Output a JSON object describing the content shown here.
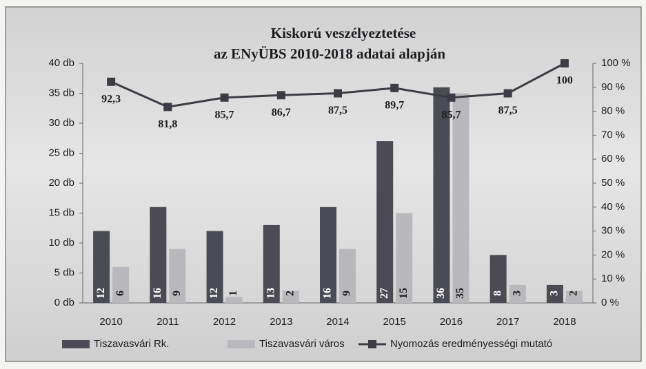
{
  "chart_data": {
    "type": "bar-line",
    "title": "Kiskorú veszélyeztetése",
    "subtitle": "az ENyÜBS 2010-2018 adatai alapján",
    "categories": [
      "2010",
      "2011",
      "2012",
      "2013",
      "2014",
      "2015",
      "2016",
      "2017",
      "2018"
    ],
    "series": [
      {
        "name": "Tiszavasvári Rk.",
        "type": "bar",
        "color": "#4b4b55",
        "values": [
          12,
          16,
          12,
          13,
          16,
          27,
          36,
          8,
          3
        ]
      },
      {
        "name": "Tiszavasvári város",
        "type": "bar",
        "color": "#b9b9bd",
        "values": [
          6,
          9,
          1,
          2,
          9,
          15,
          35,
          3,
          2
        ]
      },
      {
        "name": "Nyomozás eredményességi mutató",
        "type": "line",
        "axis": "y2",
        "color": "#3c3c44",
        "values": [
          92.3,
          81.8,
          85.7,
          86.7,
          87.5,
          89.7,
          85.7,
          87.5,
          100
        ],
        "value_labels": [
          "92,3",
          "81,8",
          "85,7",
          "86,7",
          "87,5",
          "89,7",
          "85,7",
          "87,5",
          "100"
        ]
      }
    ],
    "ylim": [
      0,
      40
    ],
    "yticks": [
      {
        "value": 0,
        "label": "0 db"
      },
      {
        "value": 5,
        "label": "5 db"
      },
      {
        "value": 10,
        "label": "10 db"
      },
      {
        "value": 15,
        "label": "15 db"
      },
      {
        "value": 20,
        "label": "20 db"
      },
      {
        "value": 25,
        "label": "25 db"
      },
      {
        "value": 30,
        "label": "30 db"
      },
      {
        "value": 35,
        "label": "35 db"
      },
      {
        "value": 40,
        "label": "40 db"
      }
    ],
    "y2lim": [
      0,
      100
    ],
    "y2ticks": [
      {
        "value": 0,
        "label": "0 %"
      },
      {
        "value": 10,
        "label": "10 %"
      },
      {
        "value": 20,
        "label": "20 %"
      },
      {
        "value": 30,
        "label": "30 %"
      },
      {
        "value": 40,
        "label": "40 %"
      },
      {
        "value": 50,
        "label": "50 %"
      },
      {
        "value": 60,
        "label": "60 %"
      },
      {
        "value": 70,
        "label": "70 %"
      },
      {
        "value": 80,
        "label": "80 %"
      },
      {
        "value": 90,
        "label": "90 %"
      },
      {
        "value": 100,
        "label": "100 %"
      }
    ],
    "grid": false
  }
}
